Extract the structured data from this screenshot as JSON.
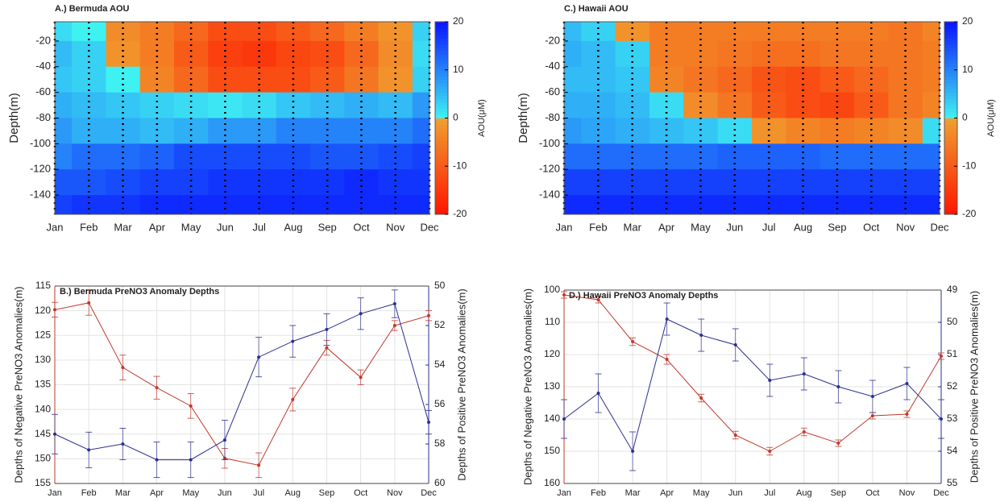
{
  "chart_data": [
    {
      "type": "heatmap",
      "title": "A.) Bermuda AOU",
      "ylabel": "Depth(m)",
      "colorbar_label": "AOU(μM)",
      "categories": [
        "Jan",
        "Feb",
        "Mar",
        "Apr",
        "May",
        "Jun",
        "Jul",
        "Aug",
        "Sep",
        "Oct",
        "Nov",
        "Dec"
      ],
      "ybins": [
        -5,
        -20,
        -40,
        -60,
        -80,
        -100,
        -120,
        -140,
        -155
      ],
      "values": [
        [
          2,
          0,
          -3,
          -5,
          -8,
          -12,
          -12,
          -10,
          -8,
          -5,
          -2,
          3
        ],
        [
          5,
          3,
          -2,
          -5,
          -10,
          -14,
          -15,
          -13,
          -12,
          -8,
          -3,
          2
        ],
        [
          4,
          3,
          0,
          -4,
          -8,
          -12,
          -12,
          -12,
          -10,
          -6,
          -2,
          3
        ],
        [
          6,
          5,
          4,
          3,
          2,
          1,
          2,
          4,
          5,
          6,
          5,
          8
        ],
        [
          8,
          6,
          6,
          5,
          6,
          8,
          8,
          10,
          10,
          10,
          10,
          12
        ],
        [
          10,
          12,
          12,
          13,
          15,
          15,
          15,
          15,
          14,
          14,
          15,
          16
        ],
        [
          14,
          14,
          15,
          16,
          16,
          17,
          17,
          17,
          17,
          18,
          17,
          17
        ],
        [
          16,
          17,
          17,
          18,
          18,
          18,
          18,
          18,
          18,
          18,
          18,
          18
        ]
      ],
      "ylim": [
        -155,
        -5
      ],
      "yticks": [
        -20,
        -40,
        -60,
        -80,
        -100,
        -120,
        -140
      ],
      "clim": [
        -20,
        20
      ],
      "colorticks": [
        -20,
        -10,
        0,
        10,
        20
      ],
      "colors": {
        "negative": [
          "#ff1500",
          "#f0a030"
        ],
        "positive": [
          "#3ff2f2",
          "#0a14ff"
        ]
      }
    },
    {
      "type": "line",
      "title": "B.) Bermuda PreNO3 Anomaly Depths",
      "ylabel": "Depths of Negative PreNO3 Anomalies(m)",
      "y2label": "Depths of Positive PreNO3 Anomalies(m)",
      "categories": [
        "Jan",
        "Feb",
        "Mar",
        "Apr",
        "May",
        "Jun",
        "Jul",
        "Aug",
        "Sep",
        "Oct",
        "Nov",
        "Dec"
      ],
      "ylim": [
        115,
        155
      ],
      "yticks": [
        115,
        120,
        125,
        130,
        135,
        140,
        145,
        150,
        155
      ],
      "y2lim": [
        50,
        60
      ],
      "y2ticks": [
        50,
        52,
        54,
        56,
        58,
        60
      ],
      "invert_y": true,
      "grid": true,
      "series": [
        {
          "color": "#c0392b",
          "axis": "y",
          "values": [
            119.8,
            118.4,
            131.5,
            135.6,
            139.3,
            149.9,
            151.3,
            138.0,
            127.5,
            133.5,
            123.0,
            121.0
          ],
          "errors": [
            1.5,
            2.5,
            2.5,
            2.3,
            2.5,
            2.0,
            2.5,
            2.3,
            1.5,
            1.5,
            1.0,
            1.0
          ]
        },
        {
          "color": "#2b2f8f",
          "axis": "y2",
          "values": [
            57.5,
            58.3,
            58.0,
            58.8,
            58.8,
            57.8,
            53.6,
            52.8,
            52.2,
            51.4,
            50.9,
            56.9
          ],
          "errors": [
            1.0,
            0.9,
            0.8,
            0.9,
            0.9,
            1.0,
            1.0,
            0.8,
            0.8,
            0.8,
            0.7,
            0.6
          ]
        }
      ]
    },
    {
      "type": "heatmap",
      "title": "C.) Hawaii AOU",
      "ylabel": "Depth(m)",
      "colorbar_label": "AOU(μM)",
      "categories": [
        "Jan",
        "Feb",
        "Mar",
        "Apr",
        "May",
        "Jun",
        "Jul",
        "Aug",
        "Sep",
        "Oct",
        "Nov",
        "Dec"
      ],
      "ybins": [
        -5,
        -20,
        -40,
        -60,
        -80,
        -100,
        -120,
        -140,
        -155
      ],
      "values": [
        [
          5,
          3,
          -2,
          -5,
          -5,
          -5,
          -5,
          -5,
          -5,
          -5,
          -6,
          -4
        ],
        [
          6,
          5,
          3,
          -5,
          -5,
          -6,
          -7,
          -7,
          -6,
          -6,
          -6,
          -5
        ],
        [
          5,
          5,
          4,
          -4,
          -6,
          -8,
          -11,
          -12,
          -10,
          -8,
          -6,
          -5
        ],
        [
          6,
          6,
          5,
          2,
          -3,
          -6,
          -10,
          -12,
          -13,
          -10,
          -6,
          -4
        ],
        [
          8,
          7,
          6,
          5,
          4,
          2,
          -2,
          -4,
          -5,
          -4,
          -3,
          2
        ],
        [
          12,
          12,
          12,
          12,
          12,
          13,
          13,
          13,
          12,
          12,
          12,
          12
        ],
        [
          16,
          16,
          16,
          16,
          16,
          16,
          16,
          16,
          16,
          16,
          16,
          16
        ],
        [
          18,
          18,
          18,
          18,
          18,
          18,
          18,
          18,
          18,
          18,
          18,
          18
        ]
      ],
      "ylim": [
        -155,
        -5
      ],
      "yticks": [
        -20,
        -40,
        -60,
        -80,
        -100,
        -120,
        -140
      ],
      "clim": [
        -20,
        20
      ],
      "colorticks": [
        -20,
        -10,
        0,
        10,
        20
      ],
      "colors": {
        "negative": [
          "#ff1500",
          "#f0a030"
        ],
        "positive": [
          "#3ff2f2",
          "#0a14ff"
        ]
      }
    },
    {
      "type": "line",
      "title": "D.) Hawaii PreNO3 Anomaly Depths",
      "ylabel": "Depths of Negative PreNO3 Anomalies(m)",
      "y2label": "Depths of Positive PreNO3 Anomalies(m)",
      "categories": [
        "Jan",
        "Feb",
        "Mar",
        "Apr",
        "May",
        "Jun",
        "Jul",
        "Aug",
        "Sep",
        "Oct",
        "Nov",
        "Dec"
      ],
      "ylim": [
        100,
        160
      ],
      "yticks": [
        100,
        110,
        120,
        130,
        140,
        150,
        160
      ],
      "y2lim": [
        49,
        55
      ],
      "y2ticks": [
        49,
        50,
        51,
        52,
        53,
        54,
        55
      ],
      "invert_y": true,
      "grid": true,
      "series": [
        {
          "color": "#c0392b",
          "axis": "y",
          "values": [
            101.5,
            103.0,
            116.0,
            121.5,
            133.5,
            145.0,
            150.0,
            144.0,
            147.5,
            139.0,
            138.5,
            120.5
          ],
          "errors": [
            1.0,
            1.0,
            1.2,
            1.5,
            1.2,
            1.2,
            1.2,
            1.2,
            1.0,
            1.0,
            1.0,
            1.0
          ]
        },
        {
          "color": "#2b2f8f",
          "axis": "y2",
          "values": [
            53.0,
            52.2,
            54.0,
            49.9,
            50.4,
            50.7,
            51.8,
            51.6,
            52.0,
            52.3,
            51.9,
            53.0
          ],
          "errors": [
            0.6,
            0.6,
            0.6,
            0.5,
            0.5,
            0.5,
            0.5,
            0.5,
            0.5,
            0.5,
            0.5,
            0.6
          ]
        }
      ]
    }
  ]
}
